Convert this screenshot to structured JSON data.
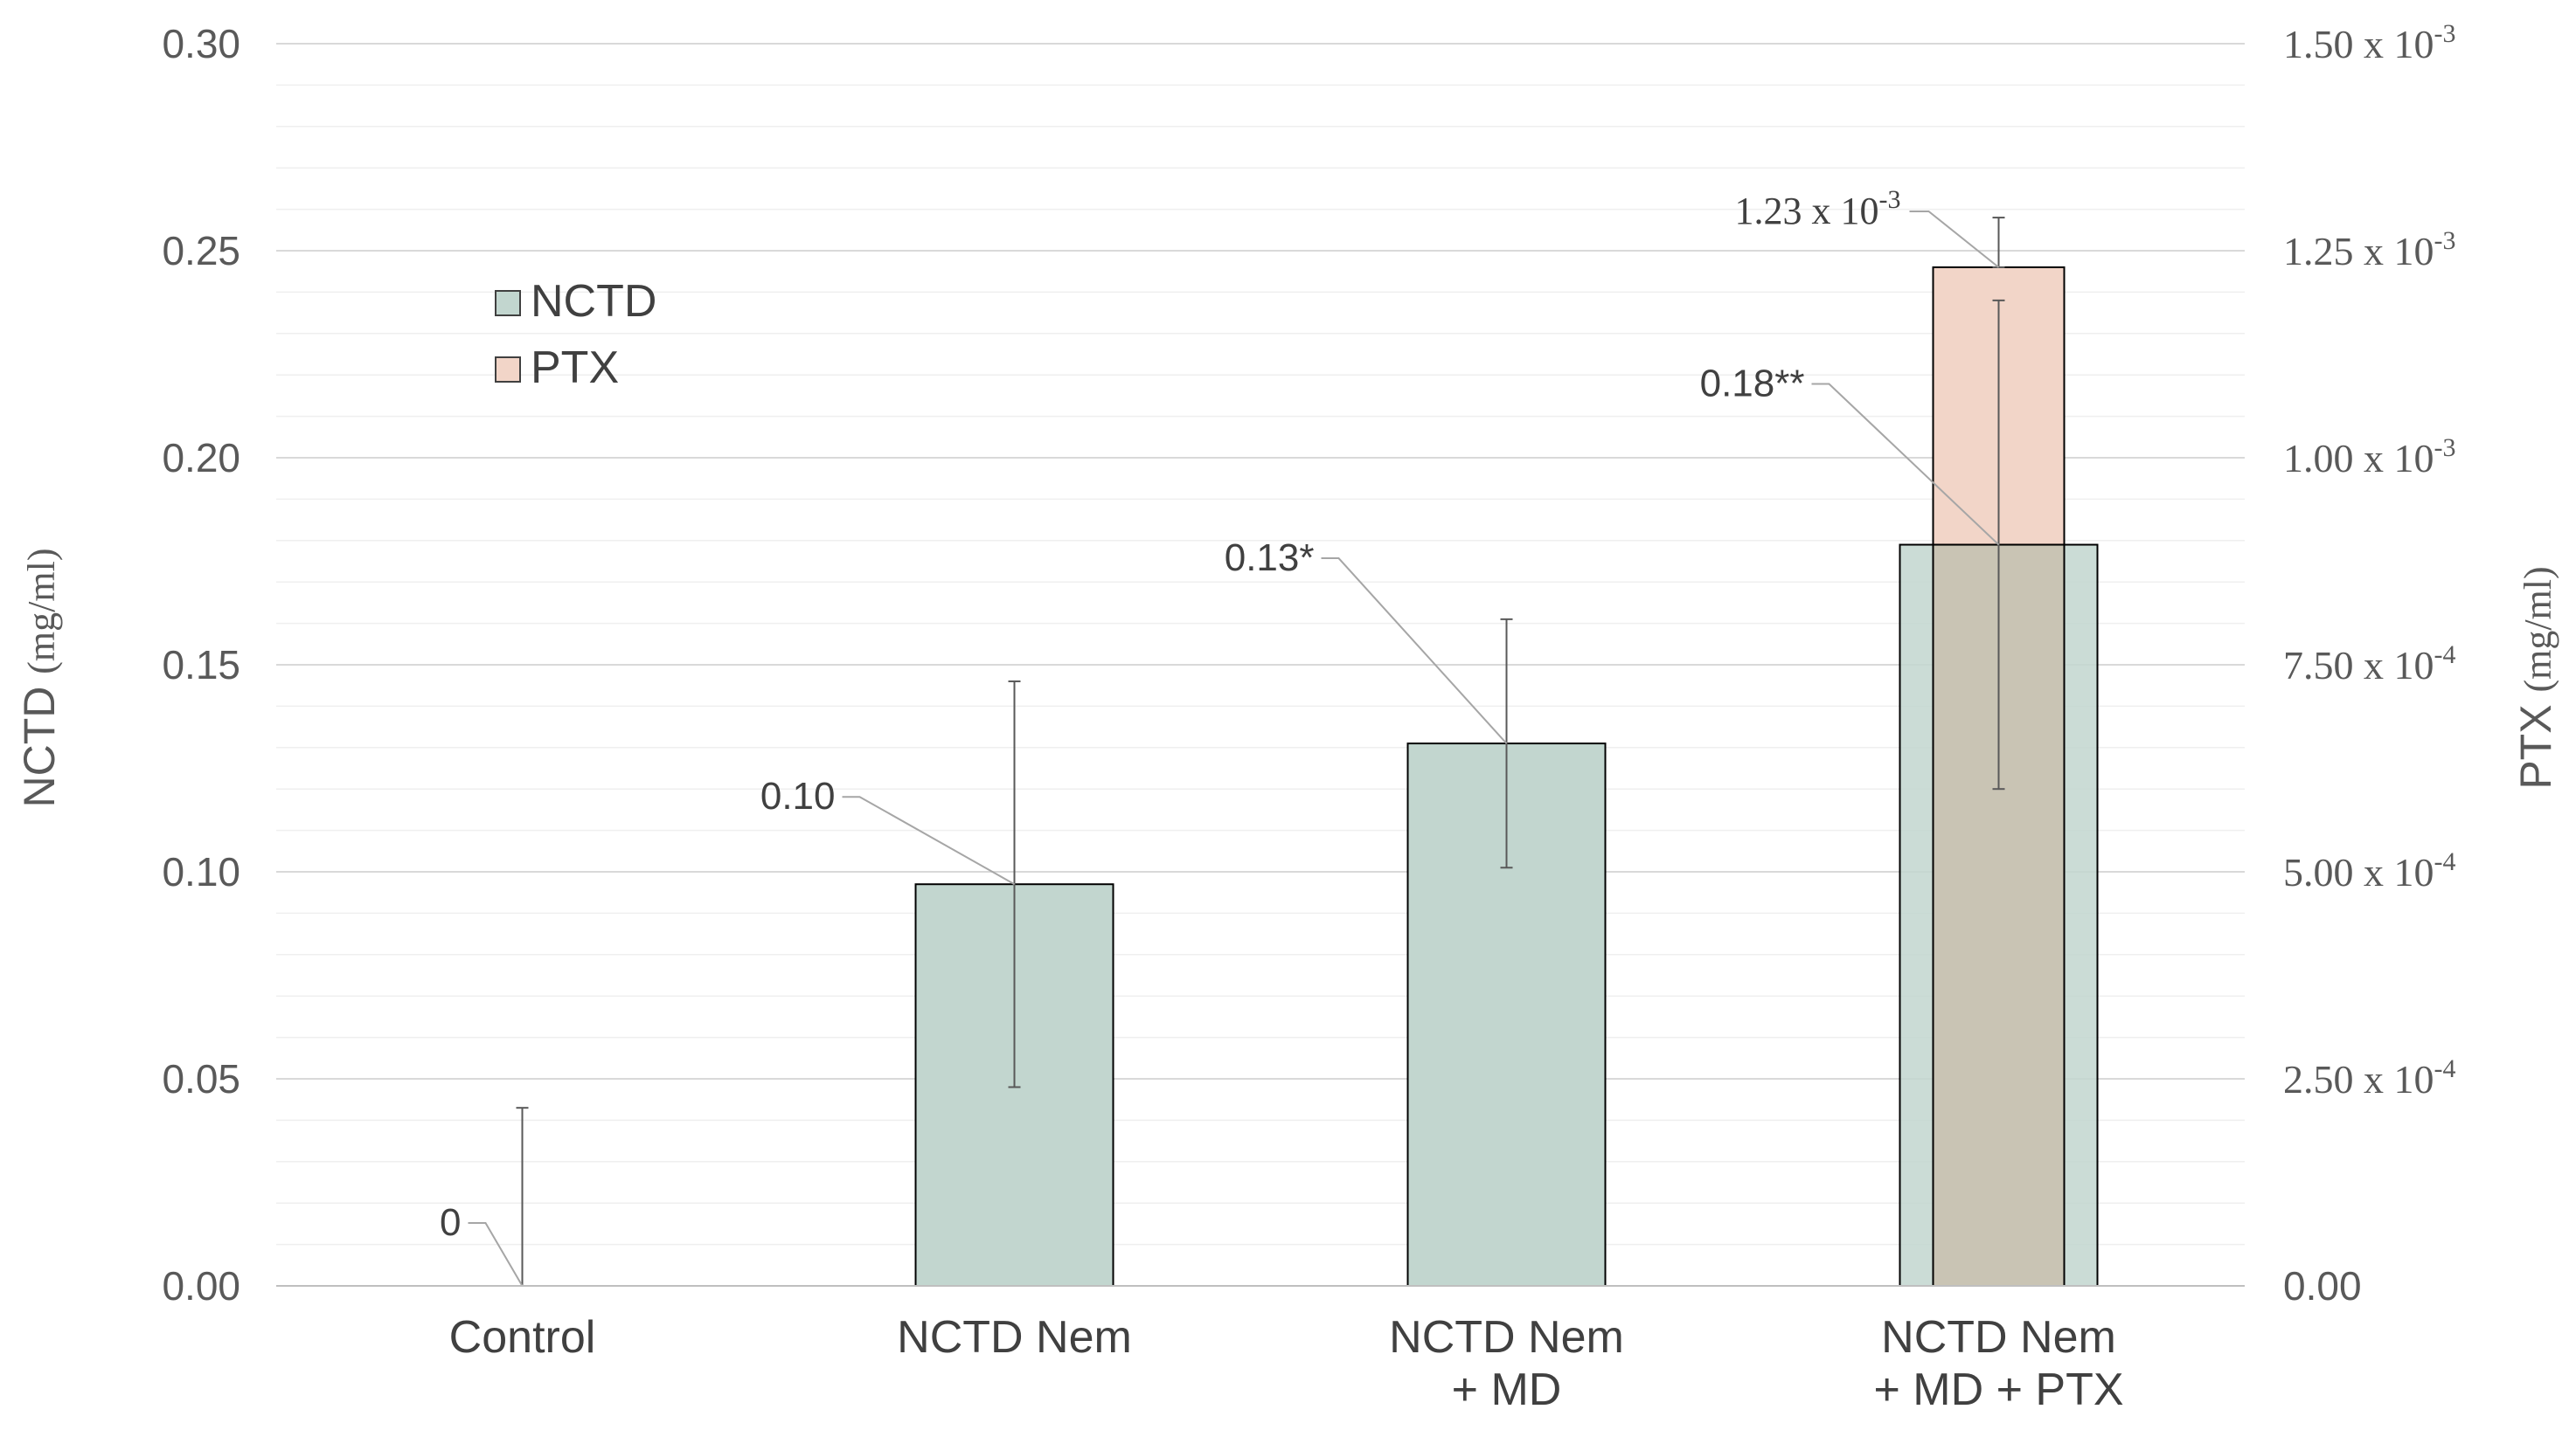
{
  "chart_data": {
    "type": "bar",
    "title": "",
    "categories": [
      [
        "Control"
      ],
      [
        "NCTD Nem"
      ],
      [
        "NCTD Nem",
        "+ MD"
      ],
      [
        "NCTD Nem",
        "+ MD + PTX"
      ]
    ],
    "series": [
      {
        "name": "NCTD",
        "axis": "left",
        "color": "#c2d6cf",
        "values": [
          0,
          0.097,
          0.131,
          0.179
        ],
        "errors": [
          0.043,
          0.049,
          0.03,
          0.059
        ],
        "labels": [
          "0",
          "0.10",
          "0.13*",
          "0.18**"
        ]
      },
      {
        "name": "PTX",
        "axis": "right",
        "color": "#f2d5c8",
        "values": [
          null,
          null,
          null,
          0.00123
        ],
        "errors": [
          null,
          null,
          null,
          6e-05
        ],
        "labels": [
          null,
          null,
          null,
          {
            "mantissa": "1.23 x 10",
            "exponent": "-3"
          }
        ]
      }
    ],
    "y_left": {
      "label": "NCTD",
      "unit": "(mg/ml)",
      "ylim": [
        0,
        0.3
      ],
      "ticks": [
        "0.00",
        "0.05",
        "0.10",
        "0.15",
        "0.20",
        "0.25",
        "0.30"
      ]
    },
    "y_right": {
      "label": "PTX",
      "unit": "(mg/ml)",
      "ylim": [
        0,
        0.0015
      ],
      "ticks": [
        {
          "text": "0.00"
        },
        {
          "mantissa": "2.50 x 10",
          "exponent": "-4"
        },
        {
          "mantissa": "5.00 x 10",
          "exponent": "-4"
        },
        {
          "mantissa": "7.50 x 10",
          "exponent": "-4"
        },
        {
          "mantissa": "1.00 x 10",
          "exponent": "-3"
        },
        {
          "mantissa": "1.25 x 10",
          "exponent": "-3"
        },
        {
          "mantissa": "1.50 x 10",
          "exponent": "-3"
        }
      ]
    },
    "grid": true,
    "legend": {
      "position": "upper-left",
      "entries": [
        "NCTD",
        "PTX"
      ]
    }
  }
}
